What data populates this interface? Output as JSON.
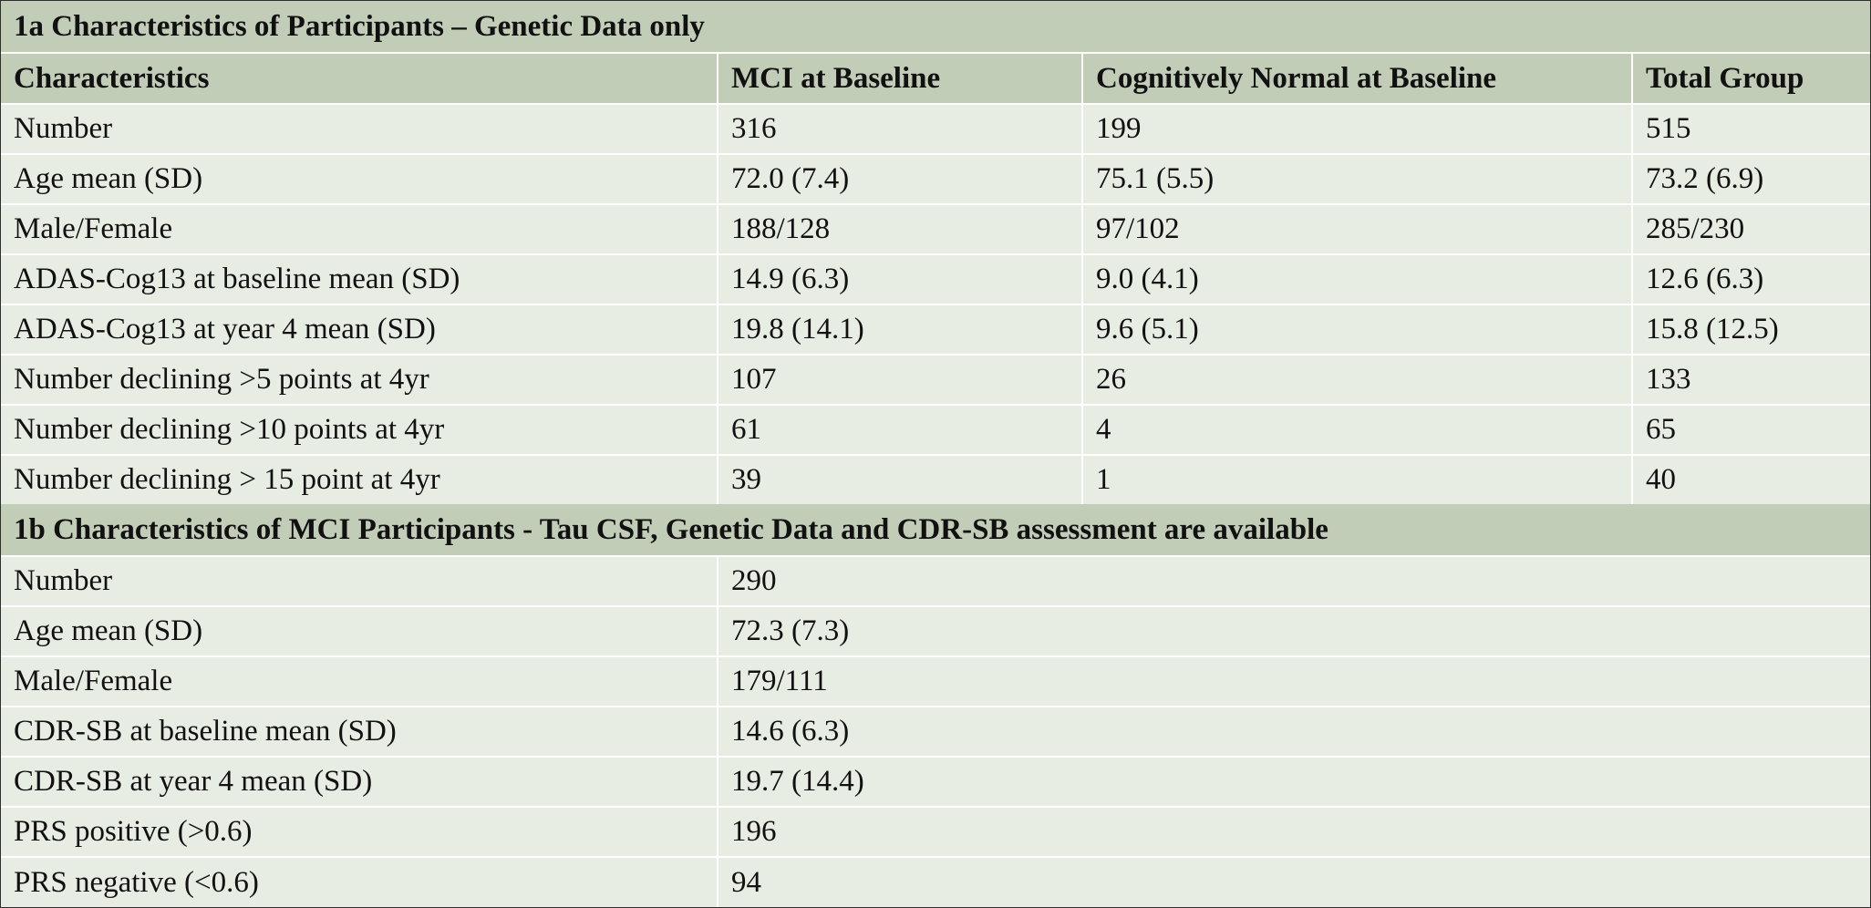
{
  "section_a": {
    "title": "1a Characteristics of Participants – Genetic Data only",
    "columns": [
      "Characteristics",
      "MCI at Baseline",
      "Cognitively Normal at Baseline",
      "Total Group"
    ],
    "rows": [
      [
        "Number",
        "316",
        "199",
        "515"
      ],
      [
        "Age mean (SD)",
        "72.0 (7.4)",
        "75.1 (5.5)",
        "73.2 (6.9)"
      ],
      [
        "Male/Female",
        "188/128",
        "97/102",
        "285/230"
      ],
      [
        "ADAS-Cog13 at baseline mean (SD)",
        "14.9 (6.3)",
        "9.0 (4.1)",
        "12.6 (6.3)"
      ],
      [
        "ADAS-Cog13 at year 4 mean (SD)",
        "19.8 (14.1)",
        "9.6 (5.1)",
        "15.8 (12.5)"
      ],
      [
        "Number declining >5 points at 4yr",
        "107",
        "26",
        "133"
      ],
      [
        "Number declining >10 points at 4yr",
        "61",
        "4",
        "65"
      ],
      [
        "Number declining > 15 point at 4yr",
        "39",
        "1",
        "40"
      ]
    ]
  },
  "section_b": {
    "title": "1b Characteristics of MCI Participants - Tau CSF, Genetic Data and CDR-SB assessment are available",
    "rows": [
      [
        "Number",
        "290"
      ],
      [
        "Age mean (SD)",
        "72.3 (7.3)"
      ],
      [
        "Male/Female",
        "179/111"
      ],
      [
        "CDR-SB at baseline mean (SD)",
        "14.6 (6.3)"
      ],
      [
        "CDR-SB at year 4 mean (SD)",
        "19.7 (14.4)"
      ],
      [
        "PRS positive (>0.6)",
        "196"
      ],
      [
        "PRS negative (<0.6)",
        "94"
      ]
    ]
  },
  "colors": {
    "header_bg": "#c2cdb8",
    "row_bg": "#e8ede4",
    "border": "#2e2e2e"
  }
}
